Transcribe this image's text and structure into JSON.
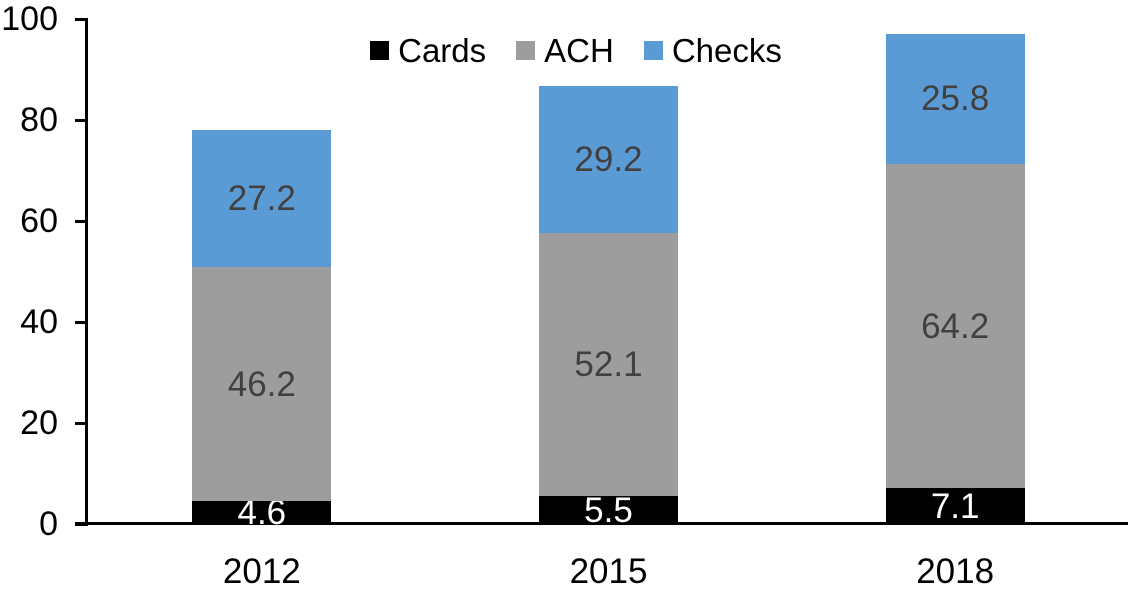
{
  "chart_data": {
    "type": "bar",
    "stacked": true,
    "title": "",
    "categories": [
      "2012",
      "2015",
      "2018"
    ],
    "series": [
      {
        "name": "Cards",
        "color": "#000000",
        "label_color": "#FFFFFF",
        "values": [
          4.6,
          5.5,
          7.1
        ]
      },
      {
        "name": "ACH",
        "color": "#9D9D9D",
        "label_color": "#404040",
        "values": [
          46.2,
          52.1,
          64.2
        ]
      },
      {
        "name": "Checks",
        "color": "#5B9BD5",
        "label_color": "#404040",
        "values": [
          27.2,
          29.2,
          25.8
        ]
      }
    ],
    "totals": [
      78.0,
      86.8,
      97.1
    ],
    "xlabel": "",
    "ylabel": "",
    "ylim": [
      0,
      100
    ],
    "yticks": [
      0,
      20,
      40,
      60,
      80,
      100
    ],
    "ytick_labels": [
      "0",
      "20",
      "40",
      "60",
      "80",
      "100"
    ],
    "grid": false,
    "legend_position": "top",
    "data_labels": true,
    "label_decimals": 1,
    "axis_color": "#000000",
    "background_color": "#FFFFFF"
  }
}
